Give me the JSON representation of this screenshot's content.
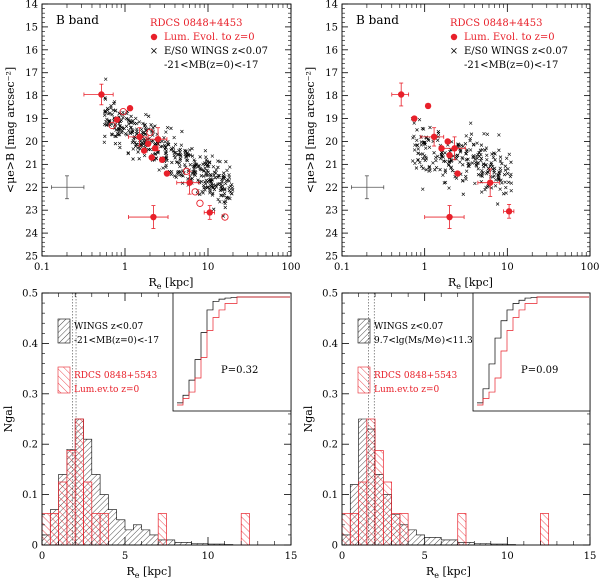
{
  "chart_data": [
    {
      "id": "tl",
      "type": "scatter",
      "xscale": "log",
      "xlim": [
        0.1,
        100
      ],
      "ylim": [
        25,
        14
      ],
      "xticks": [
        0.1,
        1,
        10,
        100
      ],
      "xticklabels": [
        "0.1",
        "1",
        "10",
        "100"
      ],
      "yticks": [
        14,
        15,
        16,
        17,
        18,
        19,
        20,
        21,
        22,
        23,
        24,
        25
      ],
      "yticklabels": [
        "14",
        "15",
        "16",
        "17",
        "18",
        "19",
        "20",
        "21",
        "22",
        "23",
        "24",
        "25"
      ],
      "xlabel": "R",
      "xlabel_sub": "e",
      "xlabel_unit": "[kpc]",
      "ylabel": "<μe>B [mag arcsec⁻²]",
      "band_label": "B band",
      "legend": [
        {
          "text": "RDCS 0848+4453",
          "color": "#e8202a"
        },
        {
          "text": "Lum. Evol. to z=0",
          "color": "#e8202a",
          "marker": "dot"
        },
        {
          "text": "E/S0 WINGS z<0.07",
          "color": "#000000",
          "marker": "cross"
        },
        {
          "text": "-21<MB(z=0)<-17",
          "color": "#000000"
        }
      ],
      "cloud": {
        "slope": 4.4,
        "intercept": 19.8,
        "scatter": 0.45,
        "n": 450,
        "logx_range": [
          -0.25,
          1.3
        ]
      },
      "red_points": [
        {
          "x": 0.52,
          "y": 17.95,
          "xerr": 0.2,
          "yerr": 0.45
        },
        {
          "x": 0.8,
          "y": 19.05
        },
        {
          "x": 1.15,
          "y": 18.55
        },
        {
          "x": 1.5,
          "y": 19.8,
          "xerr": 0.4,
          "yerr": 0.4
        },
        {
          "x": 1.7,
          "y": 20.4
        },
        {
          "x": 1.9,
          "y": 20.1
        },
        {
          "x": 2.1,
          "y": 20.7
        },
        {
          "x": 2.3,
          "y": 20.3
        },
        {
          "x": 2.5,
          "y": 19.9,
          "xerr": 0.7,
          "yerr": 0.5
        },
        {
          "x": 2.8,
          "y": 20.8
        },
        {
          "x": 3.2,
          "y": 21.4
        },
        {
          "x": 2.2,
          "y": 23.3,
          "xerr": 1.1,
          "yerr": 0.5
        },
        {
          "x": 6.0,
          "y": 21.8,
          "xerr": 1.8,
          "yerr": 0.5
        },
        {
          "x": 10.5,
          "y": 23.1,
          "xerr": 1.5,
          "yerr": 0.3
        }
      ],
      "open_points": [
        {
          "x": 0.7,
          "y": 19.3
        },
        {
          "x": 0.95,
          "y": 18.7
        },
        {
          "x": 2.0,
          "y": 19.6
        },
        {
          "x": 5.5,
          "y": 21.3
        },
        {
          "x": 7.0,
          "y": 22.2
        },
        {
          "x": 8.0,
          "y": 22.7
        },
        {
          "x": 16,
          "y": 23.3
        }
      ],
      "sample_err": {
        "x": 0.2,
        "y": 22.0,
        "x_lo": 0.13,
        "x_hi": 0.32,
        "y_lo": 21.5,
        "y_hi": 22.5
      }
    },
    {
      "id": "tr",
      "type": "scatter",
      "xscale": "log",
      "xlim": [
        0.1,
        100
      ],
      "ylim": [
        25,
        14
      ],
      "xticks": [
        0.1,
        1,
        10,
        100
      ],
      "xticklabels": [
        "0.1",
        "1",
        "10",
        "100"
      ],
      "yticks": [
        14,
        15,
        16,
        17,
        18,
        19,
        20,
        21,
        22,
        23,
        24,
        25
      ],
      "yticklabels": [
        "14",
        "15",
        "16",
        "17",
        "18",
        "19",
        "20",
        "21",
        "22",
        "23",
        "24",
        "25"
      ],
      "xlabel": "R",
      "xlabel_sub": "e",
      "xlabel_unit": "[kpc]",
      "ylabel": "<μe>B [mag arcsec⁻²]",
      "band_label": "B band",
      "legend": [
        {
          "text": "RDCS 0848+4453",
          "color": "#e8202a"
        },
        {
          "text": "Lum. Evol. to z=0",
          "color": "#e8202a",
          "marker": "dot"
        },
        {
          "text": "E/S0 WINGS z<0.07",
          "color": "#000000",
          "marker": "cross"
        },
        {
          "text": "-21<MB(z=0)<-17",
          "color": "#000000"
        }
      ],
      "cloud": {
        "slope": 2.3,
        "intercept": 20.5,
        "scatter": 0.6,
        "n": 260,
        "logx_range": [
          -0.15,
          1.05
        ]
      },
      "red_points": [
        {
          "x": 0.52,
          "y": 17.95,
          "xerr": 0.12,
          "yerr": 0.5
        },
        {
          "x": 0.75,
          "y": 19.0
        },
        {
          "x": 1.1,
          "y": 18.45
        },
        {
          "x": 1.3,
          "y": 19.8,
          "xerr": 0.4,
          "yerr": 0.4
        },
        {
          "x": 1.6,
          "y": 20.3
        },
        {
          "x": 1.9,
          "y": 20.0
        },
        {
          "x": 2.0,
          "y": 20.6
        },
        {
          "x": 2.3,
          "y": 20.3,
          "xerr": 0.8,
          "yerr": 0.5
        },
        {
          "x": 2.5,
          "y": 21.4
        },
        {
          "x": 2.0,
          "y": 23.3,
          "xerr": 1.0,
          "yerr": 0.5
        },
        {
          "x": 6.2,
          "y": 21.8,
          "xerr": 1.8,
          "yerr": 0.6
        },
        {
          "x": 10.5,
          "y": 23.05,
          "xerr": 1.5,
          "yerr": 0.3
        }
      ],
      "open_points": [],
      "sample_err": {
        "x": 0.2,
        "y": 22.0,
        "x_lo": 0.13,
        "x_hi": 0.32,
        "y_lo": 21.5,
        "y_hi": 22.5
      }
    },
    {
      "id": "bl",
      "type": "histogram",
      "xlim": [
        0,
        15
      ],
      "ylim": [
        0,
        0.5
      ],
      "xticks": [
        0,
        5,
        10,
        15
      ],
      "xticklabels": [
        "0",
        "5",
        "10",
        "15"
      ],
      "yticks": [
        0,
        0.1,
        0.2,
        0.3,
        0.4,
        0.5
      ],
      "yticklabels": [
        "0",
        "0.1",
        "0.2",
        "0.3",
        "0.4",
        "0.5"
      ],
      "xlabel": "R",
      "xlabel_sub": "e",
      "xlabel_unit": "[kpc]",
      "ylabel": "Ngal",
      "legend_black": [
        "WINGS z<0.07",
        "-21<MB(z=0)<-17"
      ],
      "legend_red": [
        "RDCS 0848+5543",
        "Lum.ev.to z=0"
      ],
      "vlines": [
        1.85,
        2.05
      ],
      "bin_width": 0.5,
      "black_hist": [
        0.02,
        0.07,
        0.14,
        0.19,
        0.25,
        0.21,
        0.14,
        0.1,
        0.07,
        0.05,
        0.03,
        0.04,
        0.03,
        0.02,
        0.01,
        0.01,
        0.005,
        0.005,
        0.003,
        0.003,
        0.002,
        0.002,
        0.001
      ],
      "red_hist": [
        0.0625,
        0.0625,
        0.125,
        0.1875,
        0.25,
        0.125,
        0.0625,
        0.0625,
        0,
        0,
        0,
        0,
        0,
        0,
        0.0625,
        0,
        0,
        0,
        0,
        0,
        0,
        0,
        0,
        0,
        0.0625
      ],
      "ks_label": "P=0.32",
      "inset_black_cdf": [
        0.02,
        0.09,
        0.23,
        0.42,
        0.67,
        0.88,
        0.96,
        0.98,
        0.99,
        0.995,
        1
      ],
      "inset_red_cdf": [
        0,
        0.06,
        0.12,
        0.25,
        0.44,
        0.69,
        0.81,
        0.88,
        0.94,
        0.94,
        1
      ]
    },
    {
      "id": "br",
      "type": "histogram",
      "xlim": [
        0,
        15
      ],
      "ylim": [
        0,
        0.5
      ],
      "xticks": [
        0,
        5,
        10,
        15
      ],
      "xticklabels": [
        "0",
        "5",
        "10",
        "15"
      ],
      "yticks": [
        0,
        0.1,
        0.2,
        0.3,
        0.4,
        0.5
      ],
      "yticklabels": [
        "0",
        "0.1",
        "0.2",
        "0.3",
        "0.4",
        "0.5"
      ],
      "xlabel": "R",
      "xlabel_sub": "e",
      "xlabel_unit": "[kpc]",
      "ylabel": "Ngal",
      "legend_black": [
        "WINGS z<0.07",
        "9.7<lg(Ms/M⊙)<11.3"
      ],
      "legend_red": [
        "RDCS 0848+5543",
        "Lum.ev.to z=0"
      ],
      "vlines": [
        1.6,
        1.95
      ],
      "bin_width": 0.5,
      "black_hist": [
        0.02,
        0.12,
        0.25,
        0.23,
        0.14,
        0.1,
        0.06,
        0.04,
        0.03,
        0.02,
        0.015,
        0.015,
        0.01,
        0.01,
        0.005,
        0.005,
        0.003,
        0.003,
        0.002,
        0.002,
        0.001
      ],
      "red_hist": [
        0.0625,
        0.0625,
        0.125,
        0.25,
        0.1875,
        0.125,
        0.0625,
        0.0625,
        0,
        0,
        0,
        0,
        0,
        0,
        0.0625,
        0,
        0,
        0,
        0,
        0,
        0,
        0,
        0,
        0,
        0.0625
      ],
      "ks_label": "P=0.09",
      "inset_black_cdf": [
        0.02,
        0.15,
        0.38,
        0.62,
        0.78,
        0.88,
        0.94,
        0.97,
        0.99,
        0.995,
        1
      ],
      "inset_red_cdf": [
        0,
        0.06,
        0.12,
        0.25,
        0.5,
        0.69,
        0.81,
        0.88,
        0.94,
        0.94,
        1
      ]
    }
  ]
}
